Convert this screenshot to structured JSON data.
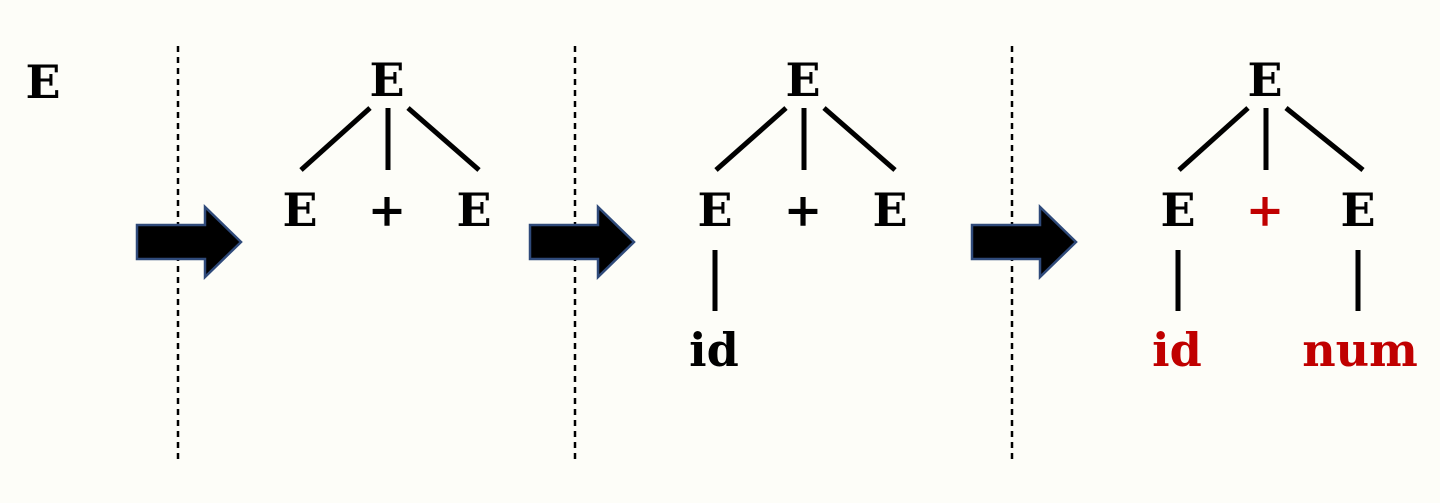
{
  "colors": {
    "background": "#fdfdf8",
    "text": "#000000",
    "highlight": "#c00000",
    "arrow_fill": "#000000",
    "arrow_stroke": "#2f4a7a",
    "divider": "#000000"
  },
  "steps": [
    {
      "root": "E",
      "children": []
    },
    {
      "root": "E",
      "children": [
        {
          "label": "E",
          "highlight": false,
          "child": null
        },
        {
          "label": "+",
          "highlight": false,
          "child": null
        },
        {
          "label": "E",
          "highlight": false,
          "child": null
        }
      ]
    },
    {
      "root": "E",
      "children": [
        {
          "label": "E",
          "highlight": false,
          "child": {
            "label": "id",
            "highlight": false
          }
        },
        {
          "label": "+",
          "highlight": false,
          "child": null
        },
        {
          "label": "E",
          "highlight": false,
          "child": null
        }
      ]
    },
    {
      "root": "E",
      "children": [
        {
          "label": "E",
          "highlight": false,
          "child": {
            "label": "id",
            "highlight": true
          }
        },
        {
          "label": "+",
          "highlight": true,
          "child": null
        },
        {
          "label": "E",
          "highlight": false,
          "child": {
            "label": "num",
            "highlight": true
          }
        }
      ]
    }
  ],
  "arrows": [
    {
      "icon": "right-arrow-icon"
    },
    {
      "icon": "right-arrow-icon"
    },
    {
      "icon": "right-arrow-icon"
    }
  ]
}
